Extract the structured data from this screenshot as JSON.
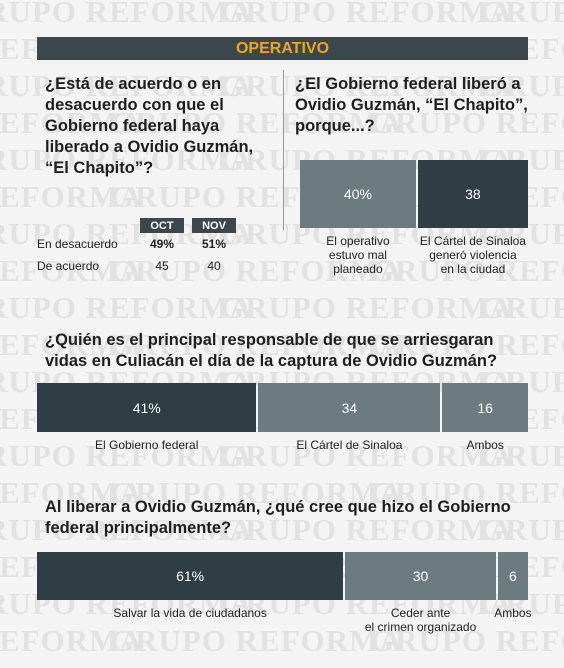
{
  "watermark": "GRUPO REFORMA",
  "header": {
    "title": "OPERATIVO"
  },
  "table": {
    "title": "¿Está de acuerdo o en desacuerdo con que el Gobierno federal haya liberado a Ovidio Guzmán, “El Chapito”?",
    "columns": [
      "OCT",
      "NOV"
    ],
    "rows": [
      [
        "En desacuerdo",
        "49%",
        "51%"
      ],
      [
        "De acuerdo",
        "45",
        "40"
      ]
    ]
  },
  "chart_data": [
    {
      "type": "bar",
      "stacked": true,
      "orientation": "horizontal",
      "title": "¿El Gobierno federal liberó a Ovidio Guzmán, “El Chapito”, porque...?",
      "categories": [
        "El operativo\nestuvo mal\nplaneado",
        "El Cártel de Sinaloa\ngeneró violencia\nen la ciudad"
      ],
      "values": [
        40,
        38
      ],
      "value_labels": [
        "40%",
        "38"
      ],
      "colors": [
        "#6b7b80",
        "#2f3e45"
      ]
    },
    {
      "type": "bar",
      "stacked": true,
      "orientation": "horizontal",
      "title": "¿Quién es el principal responsable de que se arriesgaran vidas en Culiacán el día de la captura de Ovidio Guzmán?",
      "categories": [
        "El Gobierno federal",
        "El Cártel de Sinaloa",
        "Ambos"
      ],
      "values": [
        41,
        34,
        16
      ],
      "value_labels": [
        "41%",
        "34",
        "16"
      ],
      "colors": [
        "#2f3e45",
        "#6b7b80",
        "#6b7b80"
      ]
    },
    {
      "type": "bar",
      "stacked": true,
      "orientation": "horizontal",
      "title": "Al liberar a Ovidio Guzmán, ¿qué cree que hizo el Gobierno federal principalmente?",
      "categories": [
        "Salvar la vida de ciudadanos",
        "Ceder ante\nel crimen organizado",
        "Ambos"
      ],
      "values": [
        61,
        30,
        6
      ],
      "value_labels": [
        "61%",
        "30",
        "6"
      ],
      "colors": [
        "#2f3e45",
        "#6b7b80",
        "#6b7b80"
      ]
    }
  ]
}
